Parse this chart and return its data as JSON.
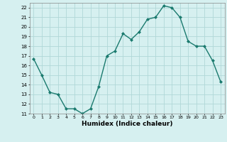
{
  "x": [
    0,
    1,
    2,
    3,
    4,
    5,
    6,
    7,
    8,
    9,
    10,
    11,
    12,
    13,
    14,
    15,
    16,
    17,
    18,
    19,
    20,
    21,
    22,
    23
  ],
  "y": [
    16.7,
    15.0,
    13.2,
    13.0,
    11.5,
    11.5,
    11.0,
    11.5,
    13.8,
    17.0,
    17.5,
    19.3,
    18.7,
    19.5,
    20.8,
    21.0,
    22.2,
    22.0,
    21.0,
    18.5,
    18.0,
    18.0,
    16.5,
    14.3
  ],
  "xlabel": "Humidex (Indice chaleur)",
  "line_color": "#1a7a6e",
  "marker_color": "#1a7a6e",
  "bg_color": "#d6f0f0",
  "grid_color": "#b0d8d8",
  "ylim": [
    11,
    22.5
  ],
  "yticks": [
    11,
    12,
    13,
    14,
    15,
    16,
    17,
    18,
    19,
    20,
    21,
    22
  ],
  "xticks": [
    0,
    1,
    2,
    3,
    4,
    5,
    6,
    7,
    8,
    9,
    10,
    11,
    12,
    13,
    14,
    15,
    16,
    17,
    18,
    19,
    20,
    21,
    22,
    23
  ]
}
